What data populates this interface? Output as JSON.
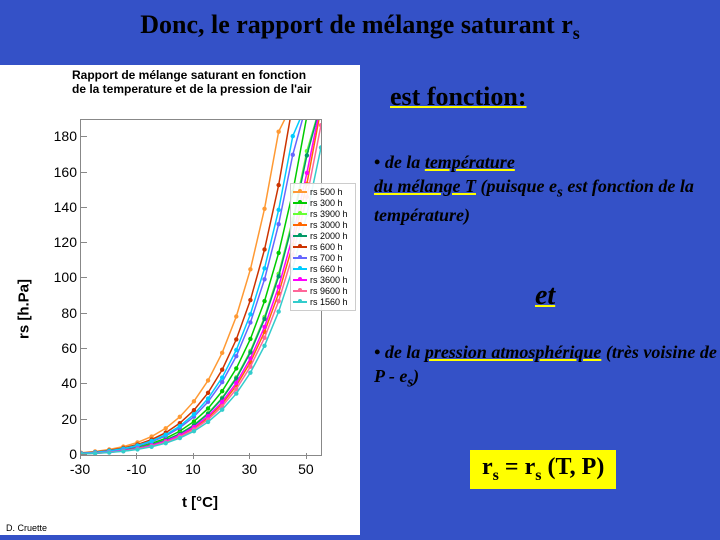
{
  "background_color": "#3451c7",
  "title_html": "Donc, le rapport de mélange saturant r<span class=\"sub\">s</span>",
  "right": {
    "heading": "est fonction:",
    "bullet1_html": "<span class=\"dot\">• </span>de la <span class=\"ul-yellow\">température</span><br><span class=\"ul-yellow\">du mélange T</span> (puisque e<sub>s</sub> est fonction de la température)",
    "et": "et",
    "bullet2_html": "<span class=\"dot\">• </span>de la <span class=\"ul-yellow\">pression atmosphérique</span> (très voisine de P - e<sub>s</sub>)",
    "formula_html": "r<span class=\"sub\">s</span> = r<span class=\"sub\">s</span> (T, P)"
  },
  "chart": {
    "title_line1": "Rapport de mélange saturant en fonction",
    "title_line2": "de la temperature et de la pression de l'air",
    "ylabel": "rs [h.Pa]",
    "xlabel": "t [°C]",
    "author": "D. Cruette",
    "xlim": [
      -30,
      55
    ],
    "xticks": [
      -30,
      -10,
      10,
      30,
      50
    ],
    "ylim": [
      0,
      190
    ],
    "yticks": [
      0,
      20,
      40,
      60,
      80,
      100,
      120,
      140,
      160,
      180
    ],
    "plot_bg": "#ffffff",
    "axis_color": "#888888",
    "temps_c": [
      -30,
      -25,
      -20,
      -15,
      -10,
      -5,
      0,
      5,
      10,
      15,
      20,
      25,
      30,
      35,
      40,
      45,
      50,
      55
    ],
    "series": [
      {
        "label": "rs 500 h",
        "color": "#ff9933",
        "scale": 2.48
      },
      {
        "label": "rs 300 h",
        "color": "#00cc00",
        "scale": 1.55
      },
      {
        "label": "rs 3900 h",
        "color": "#66ff33",
        "scale": 1.39
      },
      {
        "label": "rs 3000 h",
        "color": "#ff6600",
        "scale": 1.24
      },
      {
        "label": "rs 2000 h",
        "color": "#009966",
        "scale": 1.37
      },
      {
        "label": "rs 600 h",
        "color": "#cc3300",
        "scale": 2.07
      },
      {
        "label": "rs 700 h",
        "color": "#6666ff",
        "scale": 1.77
      },
      {
        "label": "rs 660 h",
        "color": "#00ccff",
        "scale": 1.88
      },
      {
        "label": "rs 3600 h",
        "color": "#ff00ff",
        "scale": 1.29
      },
      {
        "label": "rs 9600 h",
        "color": "#ff6699",
        "scale": 1.18
      },
      {
        "label": "rs 1560 h",
        "color": "#33cccc",
        "scale": 1.1
      }
    ]
  }
}
